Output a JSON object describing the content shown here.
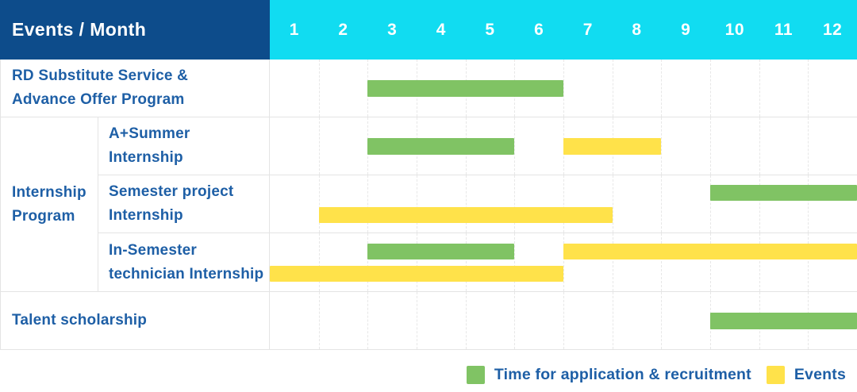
{
  "colors": {
    "navy": "#0d4c8b",
    "cyan": "#11dcf1",
    "green": "#80c364",
    "yellow": "#ffe24a",
    "text_blue": "#1e5fa6",
    "border": "#e4e4e4"
  },
  "header": {
    "title": "Events / Month",
    "months": [
      "1",
      "2",
      "3",
      "4",
      "5",
      "6",
      "7",
      "8",
      "9",
      "10",
      "11",
      "12"
    ]
  },
  "layout": {
    "rows": [
      {
        "type": "single",
        "label_lines": [
          "RD Substitute Service &",
          "Advance Offer Program"
        ],
        "bar_lines": [
          [
            {
              "color_key": "green",
              "start_month": 3,
              "end_month": 6
            }
          ]
        ]
      },
      {
        "type": "group",
        "group_lines": [
          "Internship",
          "Program"
        ],
        "children": [
          {
            "label_lines": [
              "A+Summer",
              "Internship"
            ],
            "bar_lines": [
              [
                {
                  "color_key": "green",
                  "start_month": 3,
                  "end_month": 5
                },
                {
                  "color_key": "yellow",
                  "start_month": 7,
                  "end_month": 8
                }
              ]
            ]
          },
          {
            "label_lines": [
              "Semester project",
              "Internship"
            ],
            "bar_lines": [
              [
                {
                  "color_key": "green",
                  "start_month": 10,
                  "end_month": 12
                }
              ],
              [
                {
                  "color_key": "yellow",
                  "start_month": 2,
                  "end_month": 7
                }
              ]
            ]
          },
          {
            "label_lines": [
              "In-Semester",
              "technician Internship"
            ],
            "bar_lines": [
              [
                {
                  "color_key": "green",
                  "start_month": 3,
                  "end_month": 5
                },
                {
                  "color_key": "yellow",
                  "start_month": 7,
                  "end_month": 12
                }
              ],
              [
                {
                  "color_key": "yellow",
                  "start_month": 1,
                  "end_month": 6
                }
              ]
            ]
          }
        ]
      },
      {
        "type": "single",
        "label_lines": [
          "Talent scholarship"
        ],
        "bar_lines": [
          [
            {
              "color_key": "green",
              "start_month": 10,
              "end_month": 12
            }
          ]
        ]
      }
    ]
  },
  "legend": {
    "items": [
      {
        "color_key": "green",
        "label": "Time for application & recruitment"
      },
      {
        "color_key": "yellow",
        "label": "Events"
      }
    ]
  },
  "chart_data": {
    "type": "bar",
    "subtype": "gantt-schedule",
    "title": "Events / Month",
    "x_categories": [
      1,
      2,
      3,
      4,
      5,
      6,
      7,
      8,
      9,
      10,
      11,
      12
    ],
    "x_range": [
      1,
      12
    ],
    "grid": true,
    "legend_position": "bottom-right",
    "series_legend": [
      "Time for application & recruitment",
      "Events"
    ],
    "rows": [
      {
        "group": "",
        "label": "RD Substitute Service & Advance Offer Program",
        "bars": [
          {
            "series": "Time for application & recruitment",
            "start_month": 3,
            "end_month": 6
          }
        ]
      },
      {
        "group": "Internship Program",
        "label": "A+Summer Internship",
        "bars": [
          {
            "series": "Time for application & recruitment",
            "start_month": 3,
            "end_month": 5
          },
          {
            "series": "Events",
            "start_month": 7,
            "end_month": 8
          }
        ]
      },
      {
        "group": "Internship Program",
        "label": "Semester project Internship",
        "bars": [
          {
            "series": "Time for application & recruitment",
            "start_month": 10,
            "end_month": 12
          },
          {
            "series": "Events",
            "start_month": 2,
            "end_month": 7
          }
        ]
      },
      {
        "group": "Internship Program",
        "label": "In-Semester technician Internship",
        "bars": [
          {
            "series": "Time for application & recruitment",
            "start_month": 3,
            "end_month": 5
          },
          {
            "series": "Events",
            "start_month": 7,
            "end_month": 12
          },
          {
            "series": "Events",
            "start_month": 1,
            "end_month": 6
          }
        ]
      },
      {
        "group": "",
        "label": "Talent scholarship",
        "bars": [
          {
            "series": "Time for application & recruitment",
            "start_month": 10,
            "end_month": 12
          }
        ]
      }
    ]
  }
}
